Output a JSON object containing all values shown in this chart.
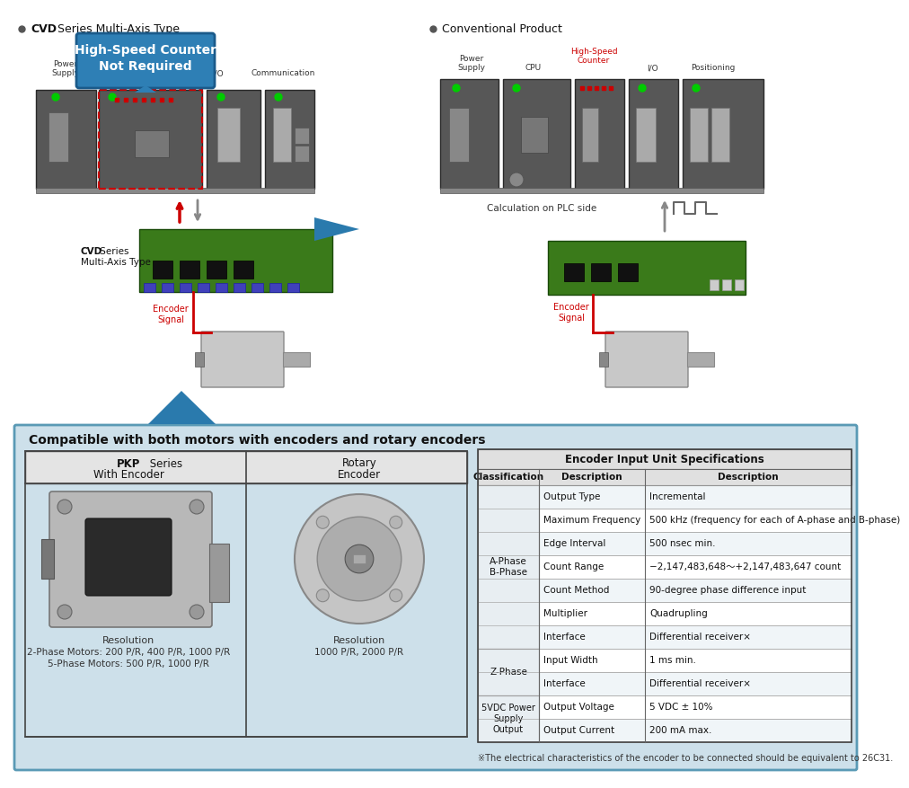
{
  "bg_color": "#ffffff",
  "bottom_panel_color": "#cde0ea",
  "bottom_panel_border": "#5a9ab5",
  "hsc_box_bg": "#2e7fb5",
  "hsc_box_text_color": "#ffffff",
  "hsc_box_text": "High-Speed Counter\nNot Required",
  "encoder_signal_color": "#cc0000",
  "teal_arrow_color": "#2a7aad",
  "dot_color": "#555555",
  "plc_dark": "#575757",
  "plc_mid": "#6e6e6e",
  "led_green": "#00cc00",
  "board_green": "#3a7a1a",
  "motor_gray": "#c0c0c0",
  "table_header_bg": "#e0e0e0",
  "table_cls_bg": "#e8eef2",
  "table_row_alt": "#f0f5f8",
  "title_left_bold": "CVD",
  "title_left_rest": " Series Multi-Axis Type",
  "title_right": "Conventional Product",
  "cvd_label_bold": "CVD",
  "cvd_label_rest": " Series\nMulti-Axis Type",
  "calc_plc": "Calculation on PLC side",
  "enc_sig": "Encoder\nSignal",
  "bottom_title": "Compatible with both motors with encoders and rotary encoders",
  "pkp_title_bold": "PKP",
  "pkp_title_rest": " Series",
  "pkp_sub": "With Encoder",
  "rot_title": "Rotary",
  "rot_sub": "Encoder",
  "pkp_res_label": "Resolution",
  "pkp_res1": "2-Phase Motors: 200 P/R, 400 P/R, 1000 P/R",
  "pkp_res2": "5-Phase Motors: 500 P/R, 1000 P/R",
  "rot_res_label": "Resolution",
  "rot_res": "1000 P/R, 2000 P/R",
  "tbl_title": "Encoder Input Unit Specifications",
  "tbl_col1": "Classification",
  "tbl_col2": "Description",
  "tbl_col3": "Description",
  "tbl_rows": [
    [
      "",
      "Output Type",
      "Incremental"
    ],
    [
      "",
      "Maximum Frequency",
      "500 kHz (frequency for each of A-phase and B-phase)"
    ],
    [
      "A-Phase\nB-Phase",
      "Edge Interval",
      "500 nsec min."
    ],
    [
      "",
      "Count Range",
      "−2,147,483,648～+2,147,483,647 count"
    ],
    [
      "",
      "Count Method",
      "90-degree phase difference input"
    ],
    [
      "",
      "Multiplier",
      "Quadrupling"
    ],
    [
      "",
      "Interface",
      "Differential receiver×"
    ],
    [
      "Z-Phase",
      "Input Width",
      "1 ms min."
    ],
    [
      "",
      "Interface",
      "Differential receiver×"
    ],
    [
      "5VDC Power\nSupply\nOutput",
      "Output Voltage",
      "5 VDC ± 10%"
    ],
    [
      "",
      "Output Current",
      "200 mA max."
    ]
  ],
  "footnote": "※The electrical characteristics of the encoder to be connected should be equivalent to 26C31."
}
